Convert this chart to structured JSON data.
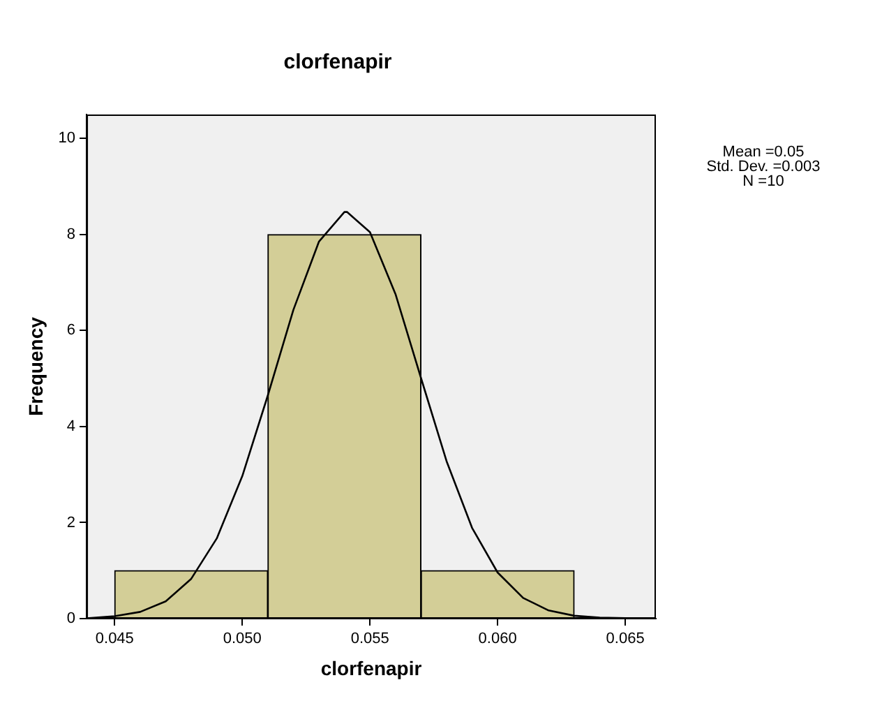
{
  "chart_data": {
    "type": "histogram",
    "title": "clorfenapir",
    "xlabel": "clorfenapir",
    "ylabel": "Frequency",
    "bins": [
      0.045,
      0.051,
      0.057,
      0.063
    ],
    "values": [
      1,
      8,
      1
    ],
    "color": "#d3ce97",
    "series": [
      {
        "type": "line",
        "color": "#000000",
        "x": [
          0.044,
          0.045,
          0.046,
          0.047,
          0.048,
          0.049,
          0.05,
          0.051,
          0.052,
          0.053,
          0.054,
          0.0541,
          0.055,
          0.056,
          0.057,
          0.058,
          0.059,
          0.06,
          0.061,
          0.062,
          0.063,
          0.064,
          0.065,
          0.066
        ],
        "values": [
          0.01,
          0.05,
          0.14,
          0.36,
          0.83,
          1.67,
          2.97,
          4.65,
          6.43,
          7.85,
          8.47,
          8.47,
          8.05,
          6.76,
          5.01,
          3.28,
          1.89,
          0.96,
          0.43,
          0.17,
          0.06,
          0.02,
          0.01,
          0
        ]
      }
    ],
    "xlim": [
      0.0439,
      0.0662
    ],
    "ylim": [
      0,
      10.5
    ],
    "xticks": [
      0.045,
      {
        "value": 0.05,
        "label": "0.050"
      },
      0.055,
      {
        "value": 0.06,
        "label": "0.060"
      },
      0.065
    ],
    "yticks": [
      0,
      2,
      4,
      6,
      8,
      10
    ],
    "annotations": [
      "Mean =0.05",
      "Std. Dev. =0.003",
      "N =10"
    ],
    "grid": false,
    "legend": false,
    "marker": "none"
  }
}
